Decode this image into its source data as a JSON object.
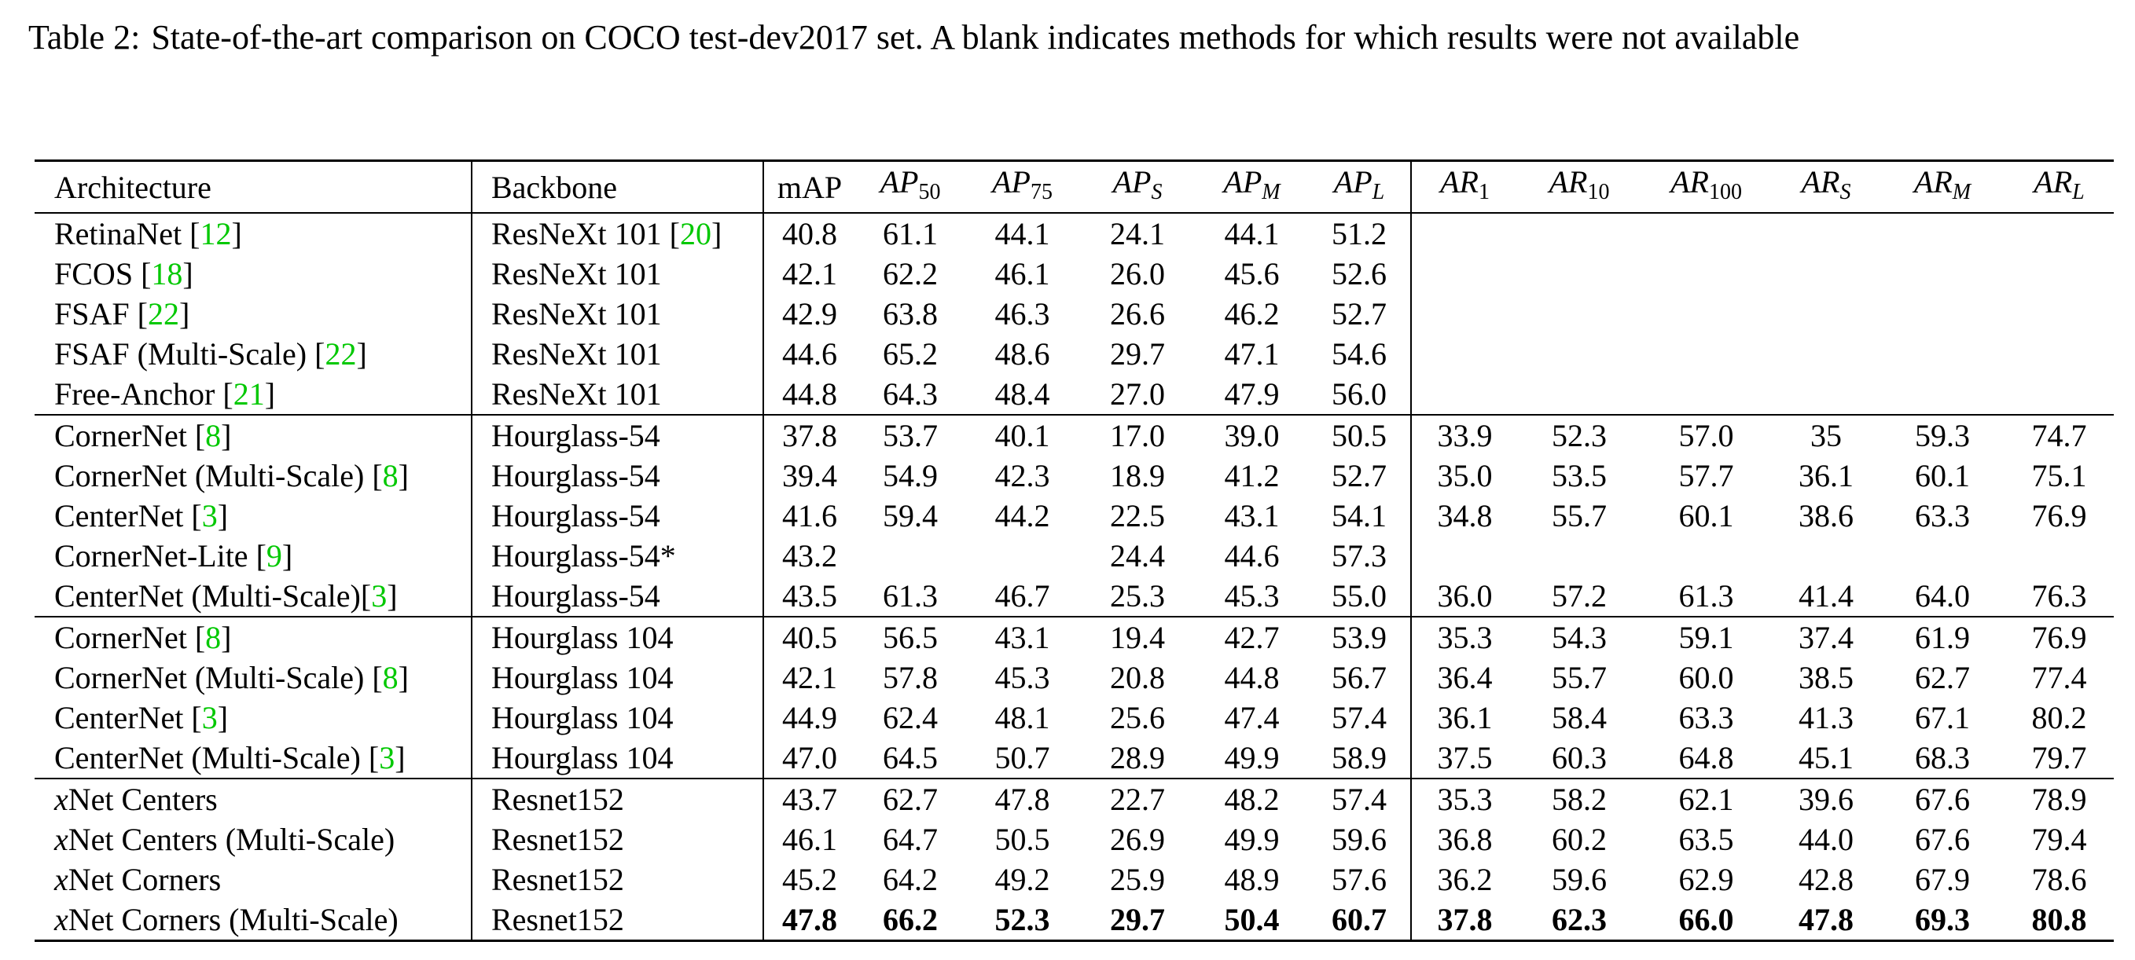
{
  "caption": {
    "label": "Table 2:",
    "text": "State-of-the-art comparison on COCO test-dev2017 set.  A blank indicates methods for which results were not available"
  },
  "headers": {
    "architecture": "Architecture",
    "backbone": "Backbone",
    "map": "mAP",
    "ap50": {
      "base": "AP",
      "sub": "50"
    },
    "ap75": {
      "base": "AP",
      "sub": "75"
    },
    "aps": {
      "base": "AP",
      "sub": "S"
    },
    "apm": {
      "base": "AP",
      "sub": "M"
    },
    "apl": {
      "base": "AP",
      "sub": "L"
    },
    "ar1": {
      "base": "AR",
      "sub": "1"
    },
    "ar10": {
      "base": "AR",
      "sub": "10"
    },
    "ar100": {
      "base": "AR",
      "sub": "100"
    },
    "ars": {
      "base": "AR",
      "sub": "S"
    },
    "arm": {
      "base": "AR",
      "sub": "M"
    },
    "arl": {
      "base": "AR",
      "sub": "L"
    }
  },
  "colors": {
    "citation": "#00c800"
  },
  "groups": [
    {
      "rows": [
        {
          "arch": "RetinaNet ",
          "arch_cite": "12",
          "backbone": "ResNeXt 101 ",
          "backbone_cite": "20",
          "values": [
            "40.8",
            "61.1",
            "44.1",
            "24.1",
            "44.1",
            "51.2",
            "",
            "",
            "",
            "",
            "",
            ""
          ]
        },
        {
          "arch": "FCOS ",
          "arch_cite": "18",
          "backbone": "ResNeXt 101",
          "backbone_cite": "",
          "values": [
            "42.1",
            "62.2",
            "46.1",
            "26.0",
            "45.6",
            "52.6",
            "",
            "",
            "",
            "",
            "",
            ""
          ]
        },
        {
          "arch": "FSAF ",
          "arch_cite": "22",
          "backbone": "ResNeXt 101",
          "backbone_cite": "",
          "values": [
            "42.9",
            "63.8",
            "46.3",
            "26.6",
            "46.2",
            "52.7",
            "",
            "",
            "",
            "",
            "",
            ""
          ]
        },
        {
          "arch": "FSAF (Multi-Scale) ",
          "arch_cite": "22",
          "backbone": "ResNeXt 101",
          "backbone_cite": "",
          "values": [
            "44.6",
            "65.2",
            "48.6",
            "29.7",
            "47.1",
            "54.6",
            "",
            "",
            "",
            "",
            "",
            ""
          ]
        },
        {
          "arch": "Free-Anchor ",
          "arch_cite": "21",
          "backbone": "ResNeXt 101",
          "backbone_cite": "",
          "values": [
            "44.8",
            "64.3",
            "48.4",
            "27.0",
            "47.9",
            "56.0",
            "",
            "",
            "",
            "",
            "",
            ""
          ]
        }
      ]
    },
    {
      "rows": [
        {
          "arch": "CornerNet ",
          "arch_cite": "8",
          "backbone": "Hourglass-54",
          "backbone_cite": "",
          "values": [
            "37.8",
            "53.7",
            "40.1",
            "17.0",
            "39.0",
            "50.5",
            "33.9",
            "52.3",
            "57.0",
            "35",
            "59.3",
            "74.7"
          ]
        },
        {
          "arch": "CornerNet (Multi-Scale) ",
          "arch_cite": "8",
          "backbone": "Hourglass-54",
          "backbone_cite": "",
          "values": [
            "39.4",
            "54.9",
            "42.3",
            "18.9",
            "41.2",
            "52.7",
            "35.0",
            "53.5",
            "57.7",
            "36.1",
            "60.1",
            "75.1"
          ]
        },
        {
          "arch": "CenterNet ",
          "arch_cite": "3",
          "backbone": "Hourglass-54",
          "backbone_cite": "",
          "values": [
            "41.6",
            "59.4",
            "44.2",
            "22.5",
            "43.1",
            "54.1",
            "34.8",
            "55.7",
            "60.1",
            "38.6",
            "63.3",
            "76.9"
          ]
        },
        {
          "arch": "CornerNet-Lite ",
          "arch_cite": "9",
          "backbone": "Hourglass-54*",
          "backbone_cite": "",
          "values": [
            "43.2",
            "",
            "",
            "24.4",
            "44.6",
            "57.3",
            "",
            "",
            "",
            "",
            "",
            ""
          ]
        },
        {
          "arch": "CenterNet (Multi-Scale)",
          "arch_cite": "3",
          "backbone": "Hourglass-54",
          "backbone_cite": "",
          "values": [
            "43.5",
            "61.3",
            "46.7",
            "25.3",
            "45.3",
            "55.0",
            "36.0",
            "57.2",
            "61.3",
            "41.4",
            "64.0",
            "76.3"
          ]
        }
      ]
    },
    {
      "rows": [
        {
          "arch": "CornerNet ",
          "arch_cite": "8",
          "backbone": "Hourglass 104",
          "backbone_cite": "",
          "values": [
            "40.5",
            "56.5",
            "43.1",
            "19.4",
            "42.7",
            "53.9",
            "35.3",
            "54.3",
            "59.1",
            "37.4",
            "61.9",
            "76.9"
          ]
        },
        {
          "arch": "CornerNet (Multi-Scale) ",
          "arch_cite": "8",
          "backbone": "Hourglass 104",
          "backbone_cite": "",
          "values": [
            "42.1",
            "57.8",
            "45.3",
            "20.8",
            "44.8",
            "56.7",
            "36.4",
            "55.7",
            "60.0",
            "38.5",
            "62.7",
            "77.4"
          ]
        },
        {
          "arch": "CenterNet ",
          "arch_cite": "3",
          "backbone": "Hourglass 104",
          "backbone_cite": "",
          "values": [
            "44.9",
            "62.4",
            "48.1",
            "25.6",
            "47.4",
            "57.4",
            "36.1",
            "58.4",
            "63.3",
            "41.3",
            "67.1",
            "80.2"
          ]
        },
        {
          "arch": "CenterNet (Multi-Scale) ",
          "arch_cite": "3",
          "backbone": "Hourglass 104",
          "backbone_cite": "",
          "values": [
            "47.0",
            "64.5",
            "50.7",
            "28.9",
            "49.9",
            "58.9",
            "37.5",
            "60.3",
            "64.8",
            "45.1",
            "68.3",
            "79.7"
          ]
        }
      ]
    },
    {
      "rows": [
        {
          "arch_x": "x",
          "arch": "Net Centers",
          "arch_cite": "",
          "backbone": "Resnet152",
          "backbone_cite": "",
          "values": [
            "43.7",
            "62.7",
            "47.8",
            "22.7",
            "48.2",
            "57.4",
            "35.3",
            "58.2",
            "62.1",
            "39.6",
            "67.6",
            "78.9"
          ]
        },
        {
          "arch_x": "x",
          "arch": "Net Centers (Multi-Scale)",
          "arch_cite": "",
          "backbone": "Resnet152",
          "backbone_cite": "",
          "values": [
            "46.1",
            "64.7",
            "50.5",
            "26.9",
            "49.9",
            "59.6",
            "36.8",
            "60.2",
            "63.5",
            "44.0",
            "67.6",
            "79.4"
          ]
        },
        {
          "arch_x": "x",
          "arch": "Net Corners",
          "arch_cite": "",
          "backbone": "Resnet152",
          "backbone_cite": "",
          "values": [
            "45.2",
            "64.2",
            "49.2",
            "25.9",
            "48.9",
            "57.6",
            "36.2",
            "59.6",
            "62.9",
            "42.8",
            "67.9",
            "78.6"
          ]
        },
        {
          "arch_x": "x",
          "arch": "Net Corners (Multi-Scale)",
          "arch_cite": "",
          "backbone": "Resnet152",
          "backbone_cite": "",
          "bold": true,
          "values": [
            "47.8",
            "66.2",
            "52.3",
            "29.7",
            "50.4",
            "60.7",
            "37.8",
            "62.3",
            "66.0",
            "47.8",
            "69.3",
            "80.8"
          ]
        }
      ]
    }
  ]
}
